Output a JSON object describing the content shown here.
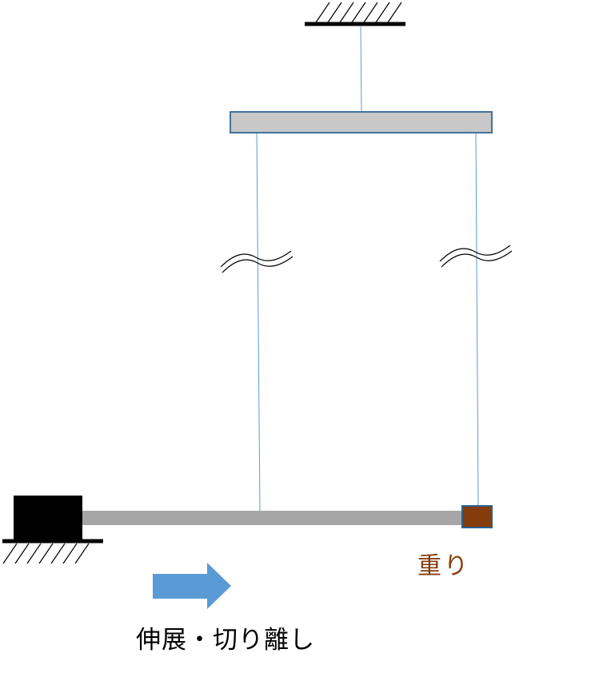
{
  "labels": {
    "weight": "重り",
    "action": "伸展・切り離し"
  },
  "colors": {
    "string": "#5b9bd5",
    "bar_fill": "#c8c8c8",
    "bar_stroke": "#41719c",
    "rod": "#a6a6a6",
    "block": "#000000",
    "weight_fill": "#843c0c",
    "weight_stroke": "#2e5e8c",
    "arrow": "#5b9bd5",
    "label_weight": "#843c0c",
    "label_action": "#000000"
  }
}
